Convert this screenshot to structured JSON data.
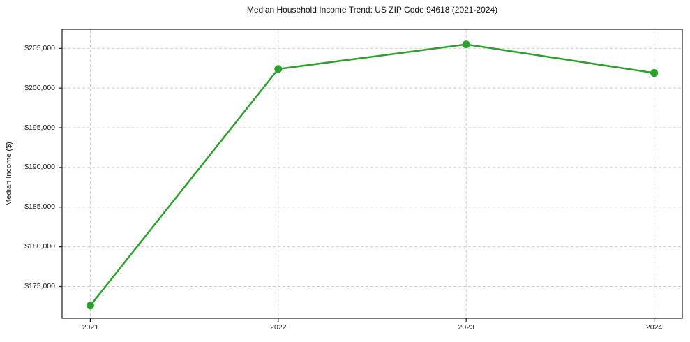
{
  "chart_data": {
    "type": "line",
    "title": "Median Household Income Trend: US ZIP Code 94618 (2021-2024)",
    "xlabel": "",
    "ylabel": "Median Income ($)",
    "x": [
      2021,
      2022,
      2023,
      2024
    ],
    "values": [
      172600,
      202400,
      205500,
      201900
    ],
    "xticks": {
      "values": [
        2021,
        2022,
        2023,
        2024
      ],
      "labels": [
        "2021",
        "2022",
        "2023",
        "2024"
      ]
    },
    "yticks": {
      "values": [
        175000,
        180000,
        185000,
        190000,
        195000,
        200000,
        205000
      ],
      "labels": [
        "$175,000",
        "$180,000",
        "$185,000",
        "$190,000",
        "$195,000",
        "$200,000",
        "$205,000"
      ]
    },
    "xlim": [
      2020.85,
      2024.15
    ],
    "ylim": [
      171000,
      207400
    ],
    "grid": true,
    "grid_style": "dashed",
    "legend": "none",
    "colors": {
      "line": "#2ca02c",
      "marker": "#2ca02c",
      "grid": "#cfcfcf",
      "spine": "#1a1a1a",
      "text": "#1a1a1a",
      "background": "#ffffff"
    },
    "line_width": 2.5,
    "marker": "circle",
    "marker_radius": 5.5
  }
}
